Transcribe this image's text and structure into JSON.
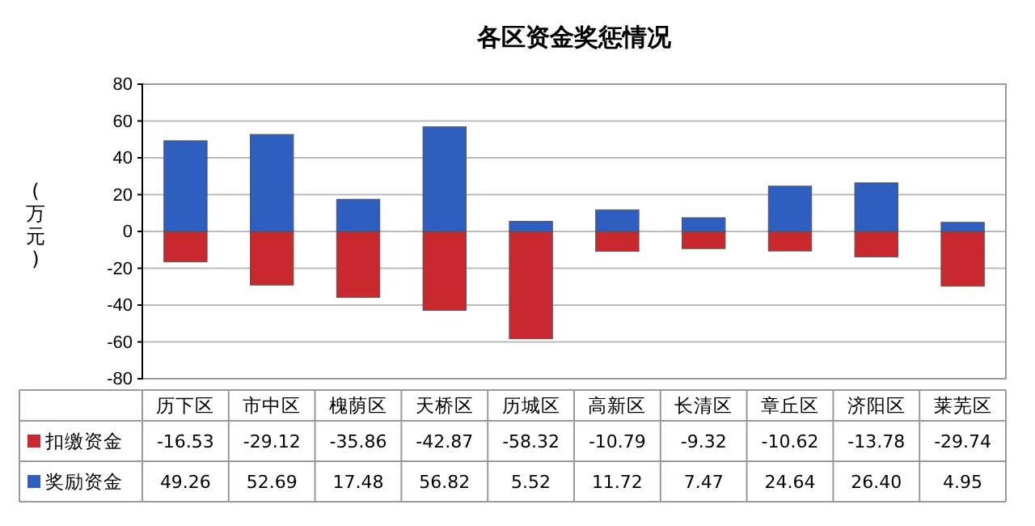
{
  "chart_data": {
    "type": "bar",
    "title": "各区资金奖惩情况",
    "ylabel": "(万元)",
    "stacked": true,
    "categories": [
      "历下区",
      "市中区",
      "槐荫区",
      "天桥区",
      "历城区",
      "高新区",
      "长清区",
      "章丘区",
      "济阳区",
      "莱芜区"
    ],
    "series": [
      {
        "name": "扣缴资金",
        "color": "#c8282e",
        "values": [
          -16.53,
          -29.12,
          -35.86,
          -42.87,
          -58.32,
          -10.79,
          -9.32,
          -10.62,
          -13.78,
          -29.74
        ],
        "value_labels": [
          "-16.53",
          "-29.12",
          "-35.86",
          "-42.87",
          "-58.32",
          "-10.79",
          "-9.32",
          "-10.62",
          "-13.78",
          "-29.74"
        ]
      },
      {
        "name": "奖励资金",
        "color": "#2e5fc0",
        "values": [
          49.26,
          52.69,
          17.48,
          56.82,
          5.52,
          11.72,
          7.47,
          24.64,
          26.4,
          4.95
        ],
        "value_labels": [
          "49.26",
          "52.69",
          "17.48",
          "56.82",
          "5.52",
          "11.72",
          "7.47",
          "24.64",
          "26.40",
          "4.95"
        ]
      }
    ],
    "ylim": [
      -80,
      80
    ],
    "yticks": [
      -80,
      -60,
      -40,
      -20,
      0,
      20,
      40,
      60,
      80
    ],
    "grid": "y",
    "legend": "bottom"
  }
}
